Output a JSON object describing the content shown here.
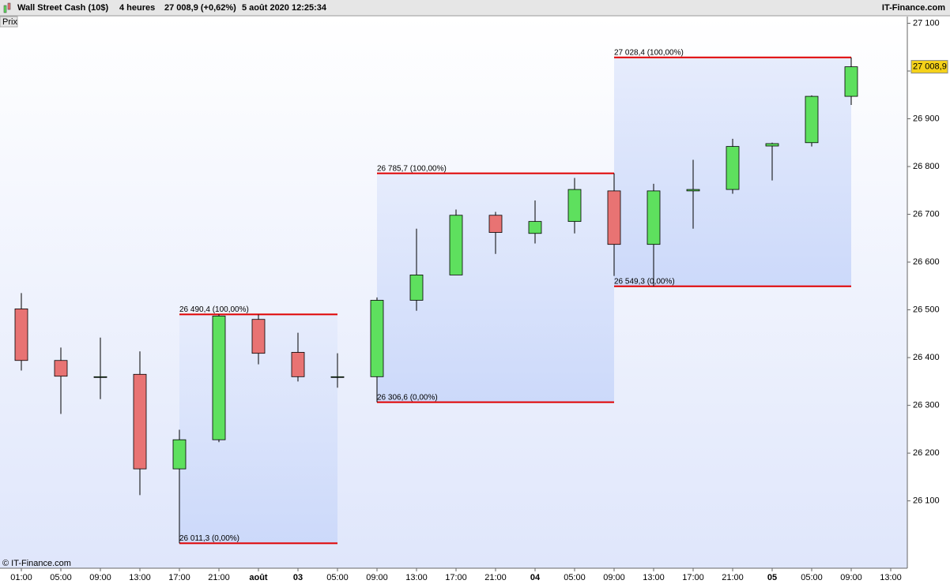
{
  "header": {
    "instrument": "Wall Street Cash (10$)",
    "period": "4 heures",
    "quote": "27 008,9 (+0,62%)",
    "datetime": "5 août 2020 12:25:34",
    "brand": "IT-Finance.com"
  },
  "chart_data": {
    "type": "candlestick",
    "axis_label": "Prix",
    "copyright": "© IT-Finance.com",
    "categories": [
      "01:00",
      "05:00",
      "09:00",
      "13:00",
      "17:00",
      "21:00",
      "août",
      "03",
      "05:00",
      "09:00",
      "13:00",
      "17:00",
      "21:00",
      "04",
      "05:00",
      "09:00",
      "13:00",
      "17:00",
      "21:00",
      "05",
      "05:00",
      "09:00",
      "13:00"
    ],
    "open": [
      26502,
      26394,
      26360,
      26365,
      26167,
      26228,
      26480,
      26411,
      26360,
      26360,
      26520,
      26573,
      26698,
      26660,
      26685,
      26749,
      26637,
      26749,
      26752,
      26843,
      26850,
      26947,
      null
    ],
    "high": [
      26535,
      26421,
      26442,
      26413,
      26249,
      26490.4,
      26490,
      26452,
      26409,
      26526,
      26670,
      26710,
      26705,
      26729,
      26776,
      26785.7,
      26764,
      26814,
      26858,
      26850,
      26949,
      27028.4,
      null
    ],
    "low": [
      26373,
      26282,
      26313,
      26112,
      26011.3,
      26223,
      26386,
      26350,
      26337,
      26306.6,
      26498,
      26573,
      26617,
      26639,
      26660,
      26571,
      26549.3,
      26670,
      26743,
      26771,
      26842,
      26929,
      null
    ],
    "close": [
      26394,
      26361,
      26360,
      26167,
      26228,
      26487,
      26409,
      26360,
      26360,
      26520,
      26573,
      26698,
      26662,
      26685,
      26752,
      26637,
      26749,
      26752,
      26842,
      26848,
      26947,
      27008.9,
      null
    ],
    "up_color": "#5ee05e",
    "down_color": "#e87373",
    "ylim": [
      25959,
      27114
    ],
    "yticks": [
      {
        "value": 26100,
        "label": "26 100"
      },
      {
        "value": 26200,
        "label": "26 200"
      },
      {
        "value": 26300,
        "label": "26 300"
      },
      {
        "value": 26400,
        "label": "26 400"
      },
      {
        "value": 26500,
        "label": "26 500"
      },
      {
        "value": 26600,
        "label": "26 600"
      },
      {
        "value": 26700,
        "label": "26 700"
      },
      {
        "value": 26800,
        "label": "26 800"
      },
      {
        "value": 26900,
        "label": "26 900"
      },
      {
        "value": 27000,
        "label": "27 000"
      },
      {
        "value": 27100,
        "label": "27 100"
      }
    ],
    "last_price": {
      "value": 27008.9,
      "label": "27 008,9"
    },
    "fib_boxes": [
      {
        "from": 4,
        "to": 8,
        "high": 26490.4,
        "low": 26011.3,
        "high_label": "26 490,4 (100,00%)",
        "low_label": "26 011,3 (0,00%)"
      },
      {
        "from": 9,
        "to": 15,
        "high": 26785.7,
        "low": 26306.6,
        "high_label": "26 785,7 (100,00%)",
        "low_label": "26 306,6 (0,00%)"
      },
      {
        "from": 15,
        "to": 21,
        "high": 27028.4,
        "low": 26549.3,
        "high_label": "27 028,4 (100,00%)",
        "low_label": "26 549,3 (0,00%)"
      }
    ]
  }
}
